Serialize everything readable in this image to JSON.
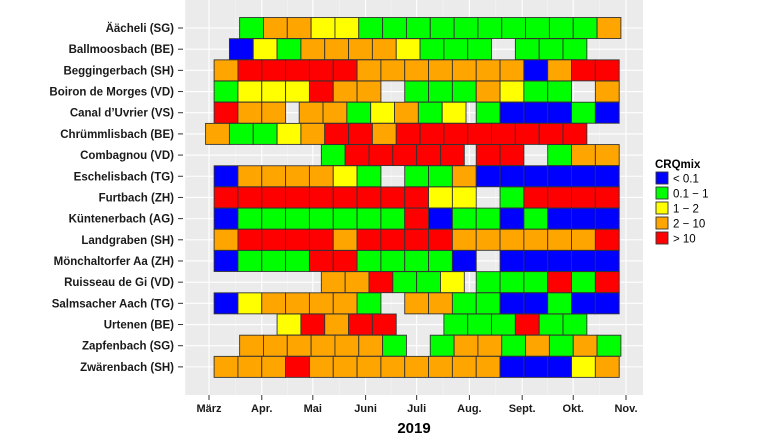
{
  "chart_data": {
    "type": "heatmap",
    "title": "",
    "xlabel": "2019",
    "ylabel": "",
    "x_ticks": [
      "März",
      "Apr.",
      "Mai",
      "Juni",
      "Juli",
      "Aug.",
      "Sept.",
      "Okt.",
      "Nov."
    ],
    "x_tick_dates": [
      "2019-03-01",
      "2019-04-01",
      "2019-05-01",
      "2019-06-01",
      "2019-07-01",
      "2019-08-01",
      "2019-09-01",
      "2019-10-01",
      "2019-11-01"
    ],
    "xlim": [
      "2019-02-22",
      "2019-11-05"
    ],
    "sample_period_days": 14,
    "grid": true,
    "legend": {
      "title": "CRQmix",
      "position": "right",
      "classes": [
        {
          "key": "B",
          "label": "< 0.1",
          "color": "#0000FF"
        },
        {
          "key": "G",
          "label": "0.1 − 1",
          "color": "#00FF00"
        },
        {
          "key": "Y",
          "label": "1 − 2",
          "color": "#FFFF00"
        },
        {
          "key": "O",
          "label": "2 − 10",
          "color": "#FFA500"
        },
        {
          "key": "R",
          "label": "> 10",
          "color": "#FF0000"
        }
      ]
    },
    "rows": [
      {
        "site": "Äächeli (SG)",
        "segments": [
          {
            "start": "2019-03-19",
            "cells": [
              "G",
              "O",
              "O",
              "Y",
              "Y",
              "G",
              "G",
              "G",
              "G",
              "G",
              "G",
              "G",
              "G",
              "G",
              "G",
              "O"
            ]
          }
        ]
      },
      {
        "site": "Ballmoosbach (BE)",
        "segments": [
          {
            "start": "2019-03-13",
            "cells": [
              "B",
              "Y",
              "G",
              "O",
              "O",
              "O",
              "O",
              "Y",
              "G",
              "G",
              "G",
              null,
              "G",
              "G",
              "G"
            ]
          }
        ]
      },
      {
        "site": "Beggingerbach (SH)",
        "segments": [
          {
            "start": "2019-03-04",
            "cells": [
              "O",
              "R",
              "R",
              "R",
              "R",
              "R",
              "O",
              "O",
              "O",
              "O",
              "O",
              "O",
              "O",
              "B",
              "O",
              "R",
              "R"
            ]
          }
        ]
      },
      {
        "site": "Boiron de Morges (VD)",
        "segments": [
          {
            "start": "2019-03-04",
            "cells": [
              "G",
              "Y",
              "Y",
              "Y",
              "R",
              "O",
              "O",
              null,
              "G",
              "G",
              "G",
              "O",
              "Y",
              "G",
              "G",
              null,
              "O"
            ]
          }
        ]
      },
      {
        "site": "Canal d’Uvrier (VS)",
        "segments": [
          {
            "start": "2019-03-04",
            "cells": [
              "R",
              "O",
              "O"
            ]
          },
          {
            "start": "2019-04-23",
            "cells": [
              "O",
              "O",
              "G",
              "Y",
              "O",
              "G",
              "Y"
            ]
          },
          {
            "start": "2019-08-05",
            "cells": [
              "G",
              "B",
              "B",
              "B",
              "G",
              "B"
            ]
          }
        ]
      },
      {
        "site": "Chrümmlisbach (BE)",
        "segments": [
          {
            "start": "2019-02-27",
            "cells": [
              "O",
              "G",
              "G",
              "Y",
              "O",
              "R",
              "R",
              "O",
              "R",
              "R",
              "R",
              "R",
              "R",
              "R",
              "R",
              "R"
            ]
          }
        ]
      },
      {
        "site": "Combagnou (VD)",
        "segments": [
          {
            "start": "2019-05-06",
            "cells": [
              "G",
              "R",
              "R",
              "R",
              "R",
              "R"
            ]
          },
          {
            "start": "2019-08-05",
            "cells": [
              "R",
              "R",
              null,
              "G",
              "O",
              "O"
            ]
          }
        ]
      },
      {
        "site": "Eschelisbach (TG)",
        "segments": [
          {
            "start": "2019-03-04",
            "cells": [
              "B",
              "O",
              "O",
              "O",
              "O",
              "Y",
              "G",
              null,
              "G",
              "G",
              "O",
              "B",
              "B",
              "B",
              "B",
              "B",
              "B"
            ]
          }
        ]
      },
      {
        "site": "Furtbach (ZH)",
        "segments": [
          {
            "start": "2019-03-04",
            "cells": [
              "R",
              "R",
              "R",
              "R",
              "R",
              "R",
              "R",
              "R",
              "R",
              "Y",
              "Y",
              null,
              "G",
              "R",
              "R",
              "R",
              "R"
            ]
          }
        ]
      },
      {
        "site": "Küntenerbach (AG)",
        "segments": [
          {
            "start": "2019-03-04",
            "cells": [
              "B",
              "G",
              "G",
              "G",
              "G",
              "G",
              "G",
              "G",
              "R",
              "B",
              "G",
              "G",
              "B",
              "G",
              "B",
              "B",
              "B"
            ]
          }
        ]
      },
      {
        "site": "Landgraben (SH)",
        "segments": [
          {
            "start": "2019-03-04",
            "cells": [
              "O",
              "R",
              "R",
              "R",
              "R",
              "O",
              "R",
              "R",
              "R",
              "R",
              "O",
              "O",
              "O",
              "O",
              "O",
              "O",
              "R"
            ]
          }
        ]
      },
      {
        "site": "Mönchaltorfer Aa (ZH)",
        "segments": [
          {
            "start": "2019-03-04",
            "cells": [
              "B",
              "G",
              "G",
              "G",
              "R",
              "R",
              "G",
              "G",
              "G",
              "G",
              "B",
              null,
              "B",
              "B",
              "B",
              "B",
              "B"
            ]
          }
        ]
      },
      {
        "site": "Ruisseau de Gi (VD)",
        "segments": [
          {
            "start": "2019-05-06",
            "cells": [
              "O",
              "O",
              "R",
              "G",
              "G",
              "Y"
            ]
          },
          {
            "start": "2019-08-05",
            "cells": [
              "G",
              "G",
              "G",
              "R",
              "G",
              "R"
            ]
          }
        ]
      },
      {
        "site": "Salmsacher Aach (TG)",
        "segments": [
          {
            "start": "2019-03-04",
            "cells": [
              "B",
              "Y",
              "O",
              "O",
              "O",
              "O",
              "G",
              null,
              "O",
              "O",
              "G",
              "G",
              "B",
              "B",
              "G",
              "B",
              "B"
            ]
          }
        ]
      },
      {
        "site": "Urtenen (BE)",
        "segments": [
          {
            "start": "2019-04-10",
            "cells": [
              "Y",
              "R",
              "O",
              "R",
              "R",
              null,
              null,
              "G",
              "G",
              "G",
              "R",
              "G",
              "G"
            ]
          }
        ]
      },
      {
        "site": "Zapfenbach (SG)",
        "segments": [
          {
            "start": "2019-03-19",
            "cells": [
              "O",
              "O",
              "O",
              "O",
              "O",
              "O",
              "G",
              null,
              "G",
              "O",
              "O",
              "G",
              "O",
              "G",
              "O",
              "G"
            ]
          }
        ]
      },
      {
        "site": "Zwärenbach (SH)",
        "segments": [
          {
            "start": "2019-03-04",
            "cells": [
              "O",
              "O",
              "O",
              "R",
              "O",
              "O",
              "O",
              "O",
              "O",
              "O",
              "O",
              "O",
              "B",
              "B",
              "B",
              "Y",
              "O"
            ]
          }
        ]
      }
    ]
  }
}
